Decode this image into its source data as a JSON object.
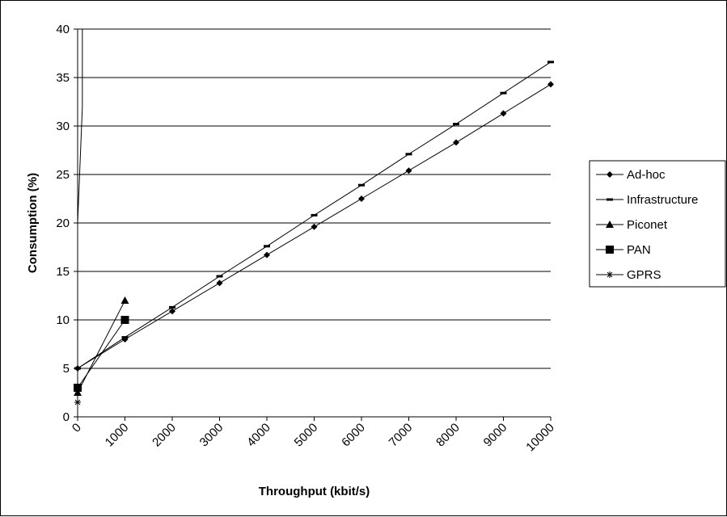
{
  "chart_data": {
    "type": "line",
    "title": "",
    "xlabel": "Throughput (kbit/s)",
    "ylabel": "Consumption (%)",
    "xlim": [
      0,
      10000
    ],
    "ylim": [
      0,
      40
    ],
    "x_ticks": [
      "0",
      "1000",
      "2000",
      "3000",
      "4000",
      "5000",
      "6000",
      "7000",
      "8000",
      "9000",
      "10000"
    ],
    "y_ticks": [
      "0",
      "5",
      "10",
      "15",
      "20",
      "25",
      "30",
      "35",
      "40"
    ],
    "grid": "horizontal",
    "legend_position": "right",
    "series": [
      {
        "name": "Ad-hoc",
        "marker": "diamond",
        "x": [
          0,
          1000,
          2000,
          3000,
          4000,
          5000,
          6000,
          7000,
          8000,
          9000,
          10000
        ],
        "y": [
          5,
          8,
          10.9,
          13.8,
          16.7,
          19.6,
          22.5,
          25.4,
          28.3,
          31.3,
          34.3
        ]
      },
      {
        "name": "Infrastructure",
        "marker": "dash",
        "x": [
          0,
          1000,
          2000,
          3000,
          4000,
          5000,
          6000,
          7000,
          8000,
          9000,
          10000
        ],
        "y": [
          5,
          8.2,
          11.3,
          14.5,
          17.6,
          20.8,
          23.9,
          27.1,
          30.2,
          33.4,
          36.6
        ]
      },
      {
        "name": "Piconet",
        "marker": "triangle",
        "x": [
          0,
          1000
        ],
        "y": [
          2.5,
          12
        ]
      },
      {
        "name": "PAN",
        "marker": "square",
        "x": [
          0,
          1000
        ],
        "y": [
          3,
          10
        ]
      },
      {
        "name": "GPRS",
        "marker": "star",
        "x": [
          0,
          0,
          0,
          0,
          100,
          100,
          100
        ],
        "y": [
          1.5,
          8,
          14,
          20,
          32,
          37,
          40
        ]
      }
    ]
  }
}
